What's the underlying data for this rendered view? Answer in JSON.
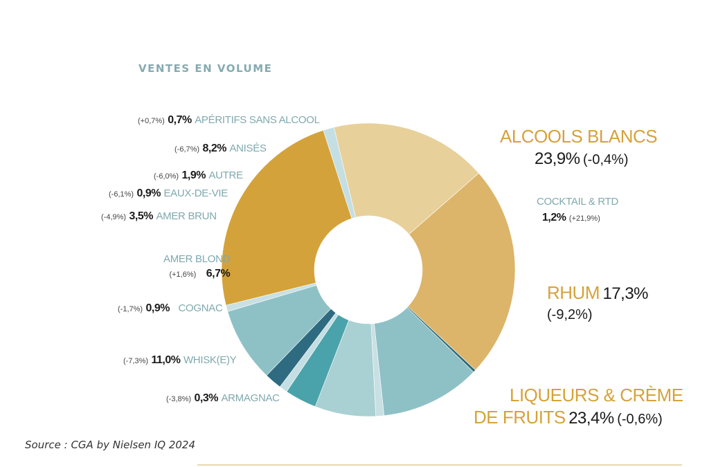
{
  "title": "VENTES EN VOLUME",
  "source": "Source : CGA by Nielsen IQ 2024",
  "chart_data": {
    "type": "pie",
    "title": "VENTES EN VOLUME",
    "donut": true,
    "slices": [
      {
        "label": "ALCOOLS BLANCS",
        "value": 23.9,
        "value_label": "23,9%",
        "change": "(-0,4%)",
        "color": "#d4a23a"
      },
      {
        "label": "COCKTAIL & RTD",
        "value": 1.2,
        "value_label": "1,2%",
        "change": "(+21,9%)",
        "color": "#c4dfe3"
      },
      {
        "label": "RHUM",
        "value": 17.3,
        "value_label": "17,3%",
        "change": "(-9,2%)",
        "color": "#e8d09a"
      },
      {
        "label": "LIQUEURS & CRÈME DE FRUITS",
        "value": 23.4,
        "value_label": "23,4%",
        "change": "(-0,6%)",
        "color": "#dcb56a"
      },
      {
        "label": "ARMAGNAC",
        "value": 0.3,
        "value_label": "0,3%",
        "change": "(-3,8%)",
        "color": "#2f6b78"
      },
      {
        "label": "WHISK(E)Y",
        "value": 11.0,
        "value_label": "11,0%",
        "change": "(-7,3%)",
        "color": "#8ec1c6"
      },
      {
        "label": "COGNAC",
        "value": 0.9,
        "value_label": "0,9%",
        "change": "(-1,7%)",
        "color": "#c8e0e3"
      },
      {
        "label": "AMER BLOND",
        "value": 6.7,
        "value_label": "6,7%",
        "change": "(+1,6%)",
        "color": "#a9d0d2"
      },
      {
        "label": "AMER BRUN",
        "value": 3.5,
        "value_label": "3,5%",
        "change": "(-4,9%)",
        "color": "#4aa3ab"
      },
      {
        "label": "EAUX-DE-VIE",
        "value": 0.9,
        "value_label": "0,9%",
        "change": "(-6,1%)",
        "color": "#c4dfe3"
      },
      {
        "label": "AUTRE",
        "value": 1.9,
        "value_label": "1,9%",
        "change": "(-6,0%)",
        "color": "#2f6b80"
      },
      {
        "label": "ANISÉS",
        "value": 8.2,
        "value_label": "8,2%",
        "change": "(-6,7%)",
        "color": "#8ec1c6"
      },
      {
        "label": "APÉRITIFS SANS ALCOOL",
        "value": 0.7,
        "value_label": "0,7%",
        "change": "(+0,7%)",
        "color": "#c8e0e3"
      }
    ]
  },
  "labels": {
    "apsa": {
      "chg": "(+0,7%)",
      "pct": "0,7%",
      "name": "APÉRITIFS SANS ALCOOL"
    },
    "anis": {
      "chg": "(-6,7%)",
      "pct": "8,2%",
      "name": "ANISÉS"
    },
    "autre": {
      "chg": "(-6,0%)",
      "pct": "1,9%",
      "name": "AUTRE"
    },
    "edv": {
      "chg": "(-6,1%)",
      "pct": "0,9%",
      "name": "EAUX-DE-VIE"
    },
    "abrun": {
      "chg": "(-4,9%)",
      "pct": "3,5%",
      "name": "AMER BRUN"
    },
    "ablond": {
      "name": "AMER BLOND",
      "chg": "(+1,6%)",
      "pct": "6,7%"
    },
    "cognac": {
      "chg": "(-1,7%)",
      "pct": "0,9%",
      "name": "COGNAC"
    },
    "whisky": {
      "chg": "(-7,3%)",
      "pct": "11,0%",
      "name": "WHISK(E)Y"
    },
    "armagnac": {
      "chg": "(-3,8%)",
      "pct": "0,3%",
      "name": "ARMAGNAC"
    },
    "blancs": {
      "name": "ALCOOLS BLANCS",
      "pct": "23,9%",
      "chg": "(-0,4%)"
    },
    "cocktail": {
      "name": "COCKTAIL & RTD",
      "pct": "1,2%",
      "chg": "(+21,9%)"
    },
    "rhum": {
      "name": "RHUM",
      "pct": "17,3%",
      "chg": "(-9,2%)"
    },
    "liqueurs": {
      "name1": "LIQUEURS & CRÈME",
      "name2": "DE FRUITS",
      "pct": "23,4%",
      "chg": "(-0,6%)"
    }
  }
}
